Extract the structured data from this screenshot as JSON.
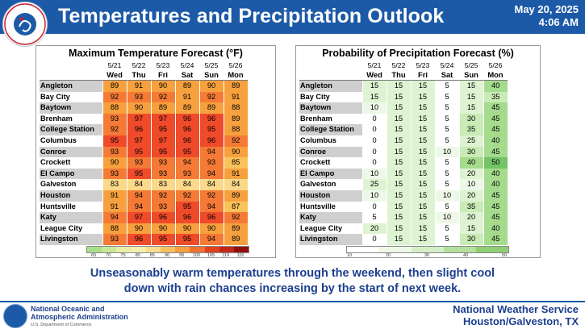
{
  "header": {
    "logo_text": "NATIONAL WEATHER SERVICE",
    "title": "Temperatures and Precipitation Outlook",
    "date": "May 20, 2025",
    "time": "4:06 AM"
  },
  "temp_panel": {
    "title": "Maximum Temperature Forecast (°F)",
    "scale_ticks": [
      "65",
      "70",
      "75",
      "80",
      "85",
      "90",
      "95",
      "100",
      "105",
      "110",
      "115"
    ]
  },
  "precip_panel": {
    "title": "Probability of Precipitation Forecast (%)",
    "scale_ticks": [
      "10",
      "20",
      "30",
      "40",
      "50"
    ]
  },
  "dates": [
    "5/21",
    "5/22",
    "5/23",
    "5/24",
    "5/25",
    "5/26"
  ],
  "days": [
    "Wed",
    "Thu",
    "Fri",
    "Sat",
    "Sun",
    "Mon"
  ],
  "cities": [
    "Angleton",
    "Bay City",
    "Baytown",
    "Brenham",
    "College Station",
    "Columbus",
    "Conroe",
    "Crockett",
    "El Campo",
    "Galveston",
    "Houston",
    "Huntsville",
    "Katy",
    "League City",
    "Livingston"
  ],
  "temps": [
    [
      89,
      91,
      90,
      89,
      90,
      89
    ],
    [
      92,
      93,
      92,
      91,
      92,
      91
    ],
    [
      88,
      90,
      89,
      89,
      89,
      88
    ],
    [
      93,
      97,
      97,
      96,
      96,
      89
    ],
    [
      92,
      96,
      95,
      96,
      95,
      88
    ],
    [
      95,
      97,
      97,
      96,
      96,
      92
    ],
    [
      93,
      95,
      95,
      95,
      94,
      90
    ],
    [
      90,
      93,
      93,
      94,
      93,
      85
    ],
    [
      93,
      95,
      93,
      93,
      94,
      91
    ],
    [
      83,
      84,
      83,
      84,
      84,
      84
    ],
    [
      91,
      94,
      92,
      92,
      92,
      89
    ],
    [
      91,
      94,
      93,
      95,
      94,
      87
    ],
    [
      94,
      97,
      96,
      96,
      96,
      92
    ],
    [
      88,
      90,
      90,
      90,
      90,
      89
    ],
    [
      93,
      96,
      95,
      95,
      94,
      89
    ]
  ],
  "precip": [
    [
      15,
      15,
      15,
      5,
      15,
      40
    ],
    [
      15,
      15,
      15,
      5,
      15,
      35
    ],
    [
      10,
      15,
      15,
      5,
      15,
      45
    ],
    [
      0,
      15,
      15,
      5,
      30,
      45
    ],
    [
      0,
      15,
      15,
      5,
      35,
      45
    ],
    [
      0,
      15,
      15,
      5,
      25,
      40
    ],
    [
      0,
      15,
      15,
      10,
      30,
      45
    ],
    [
      0,
      15,
      15,
      5,
      40,
      50
    ],
    [
      10,
      15,
      15,
      5,
      20,
      40
    ],
    [
      25,
      15,
      15,
      5,
      10,
      40
    ],
    [
      10,
      15,
      15,
      10,
      20,
      45
    ],
    [
      0,
      15,
      15,
      5,
      35,
      45
    ],
    [
      5,
      15,
      15,
      10,
      20,
      45
    ],
    [
      20,
      15,
      15,
      5,
      15,
      40
    ],
    [
      0,
      15,
      15,
      5,
      30,
      45
    ]
  ],
  "colors": {
    "header_blue": "#1c5aa8",
    "text_blue": "#1c3f8f",
    "temp_scale": [
      "#a8e08a",
      "#c9e89a",
      "#e8f0a8",
      "#f6f0b0",
      "#f9dc90",
      "#f7c060",
      "#f4a040",
      "#f07030",
      "#e04020",
      "#c02818",
      "#901010"
    ],
    "precip_scale": [
      "#ffffff",
      "#ecf7e6",
      "#d4eec8",
      "#b4e09e",
      "#8fce72"
    ]
  },
  "summary": "Unseasonably warm temperatures through the weekend, then slight cool down with rain chances increasing by the start of next week.",
  "footer": {
    "noaa_line1": "National Oceanic and",
    "noaa_line2": "Atmospheric Administration",
    "noaa_line3": "U.S. Department of Commerce",
    "nws_line1": "National Weather Service",
    "nws_line2": "Houston/Galveston, TX"
  }
}
